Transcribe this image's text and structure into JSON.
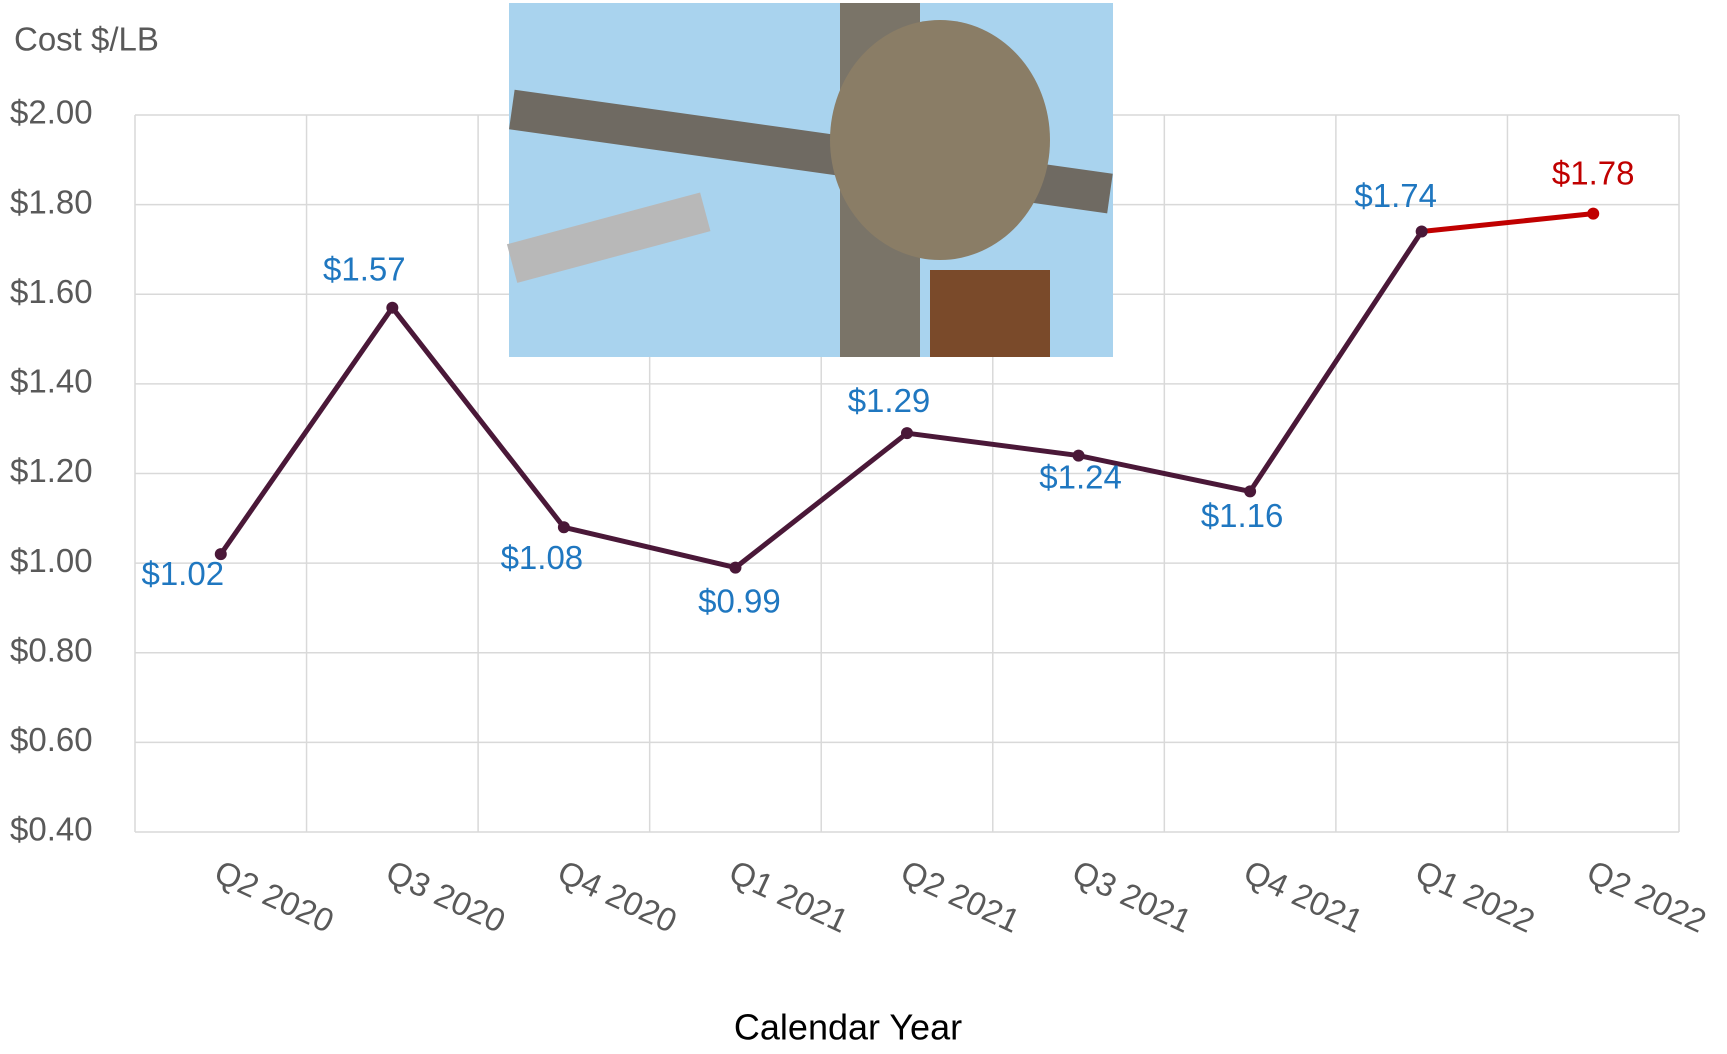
{
  "chart_data": {
    "type": "line",
    "y_label": "Cost $/LB",
    "x_label": "Calendar Year",
    "categories": [
      "Q2 2020",
      "Q3 2020",
      "Q4 2020",
      "Q1 2021",
      "Q2 2021",
      "Q3 2021",
      "Q4 2021",
      "Q1 2022",
      "Q2 2022"
    ],
    "series": [
      {
        "color": "#4a1838",
        "values": [
          1.02,
          1.57,
          1.08,
          0.99,
          1.29,
          1.24,
          1.16,
          1.74,
          1.78
        ],
        "value_labels": [
          "$1.02",
          "$1.57",
          "$1.08",
          "$0.99",
          "$1.29",
          "$1.24",
          "$1.16",
          "$1.74",
          "$1.78"
        ],
        "point_colors": [
          "#4a1838",
          "#4a1838",
          "#4a1838",
          "#4a1838",
          "#4a1838",
          "#4a1838",
          "#4a1838",
          "#4a1838",
          "#c00000"
        ],
        "label_colors": [
          "#1f77c0",
          "#1f77c0",
          "#1f77c0",
          "#1f77c0",
          "#1f77c0",
          "#1f77c0",
          "#1f77c0",
          "#1f77c0",
          "#c00000"
        ]
      }
    ],
    "ylim": [
      0.4,
      2.0
    ],
    "yticks": [
      {
        "value": 0.4,
        "label": "$0.40"
      },
      {
        "value": 0.6,
        "label": "$0.60"
      },
      {
        "value": 0.8,
        "label": "$0.80"
      },
      {
        "value": 1.0,
        "label": "$1.00"
      },
      {
        "value": 1.2,
        "label": "$1.20"
      },
      {
        "value": 1.4,
        "label": "$1.40"
      },
      {
        "value": 1.6,
        "label": "$1.60"
      },
      {
        "value": 1.8,
        "label": "$1.80"
      },
      {
        "value": 2.0,
        "label": "$2.00"
      }
    ],
    "grid": true
  }
}
